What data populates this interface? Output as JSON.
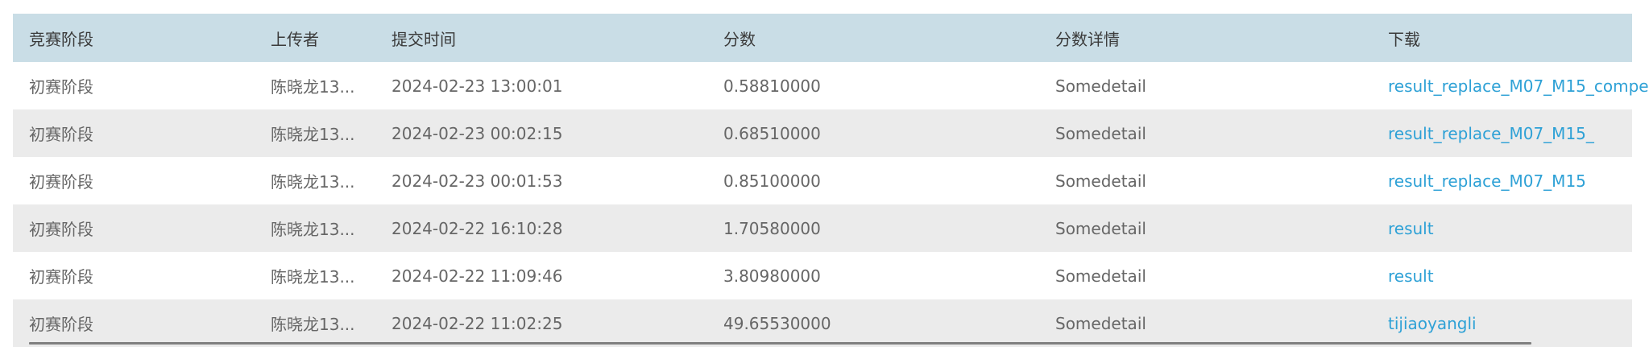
{
  "table": {
    "headers": [
      "竞赛阶段",
      "上传者",
      "提交时间",
      "分数",
      "分数详情",
      "下载"
    ],
    "rows": [
      {
        "stage": "初赛阶段",
        "uploader": "陈晓龙13...",
        "time": "2024-02-23 13:00:01",
        "score": "0.58810000",
        "detail": "Somedetail",
        "download": "result_replace_M07_M15_compe"
      },
      {
        "stage": "初赛阶段",
        "uploader": "陈晓龙13...",
        "time": "2024-02-23 00:02:15",
        "score": "0.68510000",
        "detail": "Somedetail",
        "download": "result_replace_M07_M15_"
      },
      {
        "stage": "初赛阶段",
        "uploader": "陈晓龙13...",
        "time": "2024-02-23 00:01:53",
        "score": "0.85100000",
        "detail": "Somedetail",
        "download": "result_replace_M07_M15"
      },
      {
        "stage": "初赛阶段",
        "uploader": "陈晓龙13...",
        "time": "2024-02-22 16:10:28",
        "score": "1.70580000",
        "detail": "Somedetail",
        "download": "result"
      },
      {
        "stage": "初赛阶段",
        "uploader": "陈晓龙13...",
        "time": "2024-02-22 11:09:46",
        "score": "3.80980000",
        "detail": "Somedetail",
        "download": "result"
      },
      {
        "stage": "初赛阶段",
        "uploader": "陈晓龙13...",
        "time": "2024-02-22 11:02:25",
        "score": "49.65530000",
        "detail": "Somedetail",
        "download": "tijiaoyangli"
      }
    ]
  },
  "colors": {
    "header_bg": "#c9dde6",
    "alt_row_bg": "#ebebeb",
    "link": "#2ea1d6",
    "text": "#666666"
  }
}
